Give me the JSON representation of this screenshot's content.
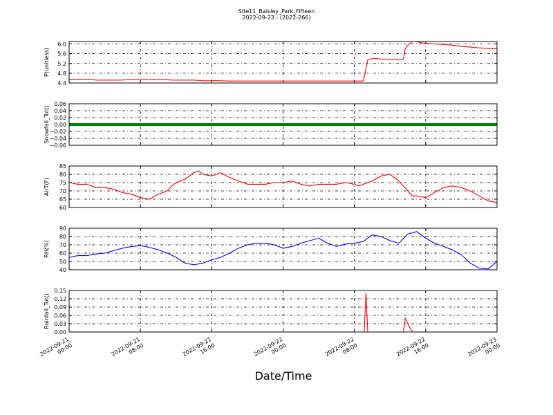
{
  "title": "Site11_Baisley_Park_Fifteen",
  "subtitle": "2022-09-23 - (2022-266)",
  "xlabel": "Date/Time",
  "x_ticks": [
    {
      "line1": "2022-09-21",
      "line2": "00:00",
      "hours": 0
    },
    {
      "line1": "2022-09-21",
      "line2": "08:00",
      "hours": 8
    },
    {
      "line1": "2022-09-21",
      "line2": "16:00",
      "hours": 16
    },
    {
      "line1": "2022-09-22",
      "line2": "00:00",
      "hours": 24
    },
    {
      "line1": "2022-09-22",
      "line2": "08:00",
      "hours": 32
    },
    {
      "line1": "2022-09-22",
      "line2": "16:00",
      "hours": 40
    },
    {
      "line1": "2022-09-23",
      "line2": "00:00",
      "hours": 48
    }
  ],
  "chart_data": [
    {
      "type": "line",
      "ylabel": "P(unitless)",
      "ylim": [
        4.4,
        6.1
      ],
      "yticks": [
        "4.4",
        "4.8",
        "5.2",
        "5.6",
        "6.0"
      ],
      "color": "#ff0000",
      "grid": true,
      "x": [
        0,
        2.5,
        3,
        6,
        6.5,
        11,
        11.5,
        14,
        15,
        16,
        16.5,
        17,
        18,
        21,
        24,
        30,
        32,
        33,
        33.2,
        33.5,
        34,
        34.5,
        35,
        36,
        37,
        37.5,
        37.7,
        38,
        38.5,
        39,
        39.5,
        40,
        41,
        42,
        43,
        44,
        45,
        46,
        47,
        48
      ],
      "y": [
        4.55,
        4.55,
        4.52,
        4.52,
        4.54,
        4.54,
        4.52,
        4.52,
        4.49,
        4.49,
        4.5,
        4.49,
        4.48,
        4.48,
        4.48,
        4.48,
        4.48,
        4.48,
        4.8,
        5.35,
        5.4,
        5.4,
        5.38,
        5.37,
        5.37,
        5.37,
        5.8,
        5.95,
        6.1,
        6.1,
        6.05,
        6.02,
        6.0,
        5.98,
        5.95,
        5.9,
        5.87,
        5.84,
        5.82,
        5.8
      ]
    },
    {
      "type": "line",
      "ylabel": "Snowfall_Tot()",
      "ylim": [
        -0.06,
        0.06
      ],
      "yticks": [
        "−0.06",
        "−0.04",
        "−0.02",
        "0.00",
        "0.02",
        "0.04",
        "0.06"
      ],
      "color": "#008000",
      "grid": true,
      "x": [
        0,
        48
      ],
      "y": [
        0,
        0
      ]
    },
    {
      "type": "line",
      "ylabel": "AirT(F)",
      "ylim": [
        60,
        85
      ],
      "yticks": [
        "60",
        "65",
        "70",
        "75",
        "80",
        "85"
      ],
      "color": "#ff0000",
      "grid": true,
      "x": [
        0,
        1,
        2,
        2.5,
        3,
        4,
        5,
        6,
        7,
        7.5,
        8,
        9,
        10,
        11,
        11.5,
        12,
        13,
        13.5,
        14,
        14.5,
        15,
        16,
        17,
        18,
        19,
        20,
        21,
        22,
        23,
        24,
        25,
        26,
        27,
        28,
        29,
        30,
        31,
        32,
        32.5,
        33,
        34,
        35,
        36,
        37,
        38,
        38.5,
        39,
        40,
        41,
        42,
        43,
        44,
        45,
        46,
        47,
        48
      ],
      "y": [
        75,
        74,
        74,
        73,
        72,
        72,
        71,
        69,
        68,
        67,
        66,
        65,
        68,
        70,
        73,
        75,
        77,
        79,
        81,
        82,
        80,
        79,
        81,
        78,
        76,
        74,
        74,
        74,
        75,
        75,
        76,
        74,
        73,
        74,
        74,
        74,
        75,
        74,
        73,
        74,
        76,
        79,
        80,
        76,
        70,
        67,
        67,
        66,
        69,
        72,
        73,
        72,
        70,
        67,
        64,
        63
      ]
    },
    {
      "type": "line",
      "ylabel": "RH(%)",
      "ylim": [
        40,
        90
      ],
      "yticks": [
        "40",
        "50",
        "60",
        "70",
        "80",
        "90"
      ],
      "color": "#0000ff",
      "grid": true,
      "x": [
        0,
        1,
        2,
        3,
        4,
        5,
        6,
        7,
        8,
        9,
        10,
        11,
        12,
        13,
        14,
        15,
        16,
        17,
        18,
        19,
        20,
        21,
        22,
        23,
        24,
        25,
        26,
        27,
        28,
        29,
        30,
        31,
        32,
        33,
        34,
        35,
        36,
        37,
        38,
        39,
        40,
        41,
        42,
        43,
        44,
        45,
        46,
        47,
        48
      ],
      "y": [
        55,
        57,
        57,
        59,
        60,
        63,
        66,
        68,
        69,
        67,
        64,
        60,
        55,
        48,
        46,
        48,
        52,
        55,
        60,
        66,
        70,
        72,
        72,
        70,
        66,
        68,
        72,
        75,
        78,
        72,
        68,
        71,
        72,
        74,
        82,
        80,
        75,
        72,
        83,
        86,
        78,
        72,
        68,
        64,
        58,
        48,
        42,
        41,
        50
      ]
    },
    {
      "type": "line",
      "ylabel": "Rainfall_Tot()",
      "ylim": [
        0.0,
        0.15
      ],
      "yticks": [
        "0.00",
        "0.03",
        "0.06",
        "0.09",
        "0.12",
        "0.15"
      ],
      "color": "#ff0000",
      "grid": true,
      "x": [
        0,
        33.1,
        33.3,
        33.5,
        37.5,
        37.7,
        38,
        38.3,
        38.6,
        48
      ],
      "y": [
        0,
        0,
        0.14,
        0,
        0,
        0.05,
        0.03,
        0.01,
        0,
        0
      ]
    }
  ]
}
